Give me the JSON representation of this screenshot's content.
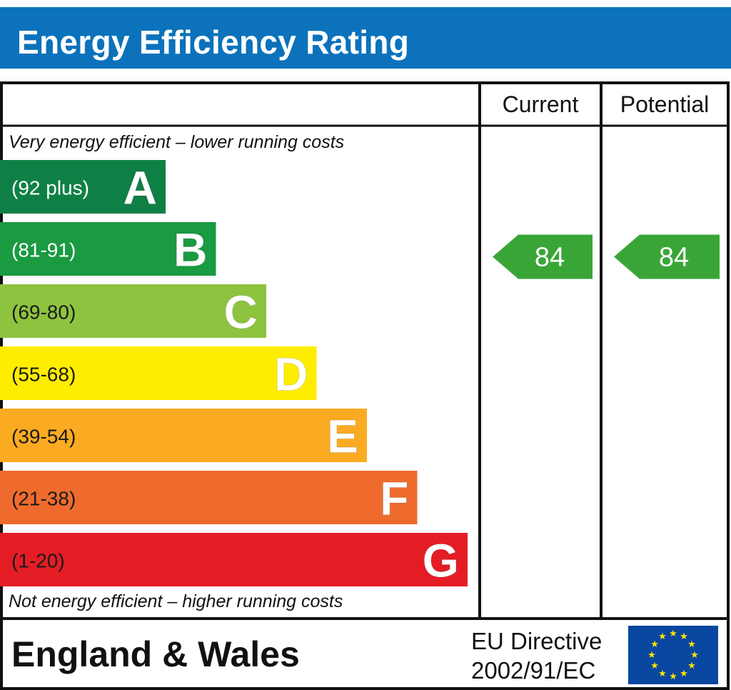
{
  "title": "Energy Efficiency Rating",
  "colors": {
    "header_bg": "#0b72bb",
    "grid": "#111111",
    "indicator": "#3aa537"
  },
  "chart_data": {
    "type": "bar",
    "top_caption": "Very energy efficient – lower running costs",
    "bottom_caption": "Not energy efficient – higher running costs",
    "columns": [
      "Current",
      "Potential"
    ],
    "bands": [
      {
        "letter": "A",
        "range": "(92 plus)",
        "min": 92,
        "max": 100,
        "color": "#0f8045",
        "letter_color": "#ffffff",
        "range_color": "#ffffff"
      },
      {
        "letter": "B",
        "range": "(81-91)",
        "min": 81,
        "max": 91,
        "color": "#1a9a41",
        "letter_color": "#ffffff",
        "range_color": "#ffffff"
      },
      {
        "letter": "C",
        "range": "(69-80)",
        "min": 69,
        "max": 80,
        "color": "#8dc33f",
        "letter_color": "#ffffff",
        "range_color": "#1a1a1a"
      },
      {
        "letter": "D",
        "range": "(55-68)",
        "min": 55,
        "max": 68,
        "color": "#ffed00",
        "letter_color": "#ffffff",
        "range_color": "#1a1a1a"
      },
      {
        "letter": "E",
        "range": "(39-54)",
        "min": 39,
        "max": 54,
        "color": "#fbab21",
        "letter_color": "#ffffff",
        "range_color": "#1a1a1a"
      },
      {
        "letter": "F",
        "range": "(21-38)",
        "min": 21,
        "max": 38,
        "color": "#ef6b2d",
        "letter_color": "#ffffff",
        "range_color": "#1a1a1a"
      },
      {
        "letter": "G",
        "range": "(1-20)",
        "min": 1,
        "max": 20,
        "color": "#e41d25",
        "letter_color": "#ffffff",
        "range_color": "#1a1a1a"
      }
    ],
    "current": {
      "value": 84,
      "band": "B"
    },
    "potential": {
      "value": 84,
      "band": "B"
    }
  },
  "footer": {
    "region": "England & Wales",
    "directive_line1": "EU Directive",
    "directive_line2": "2002/91/EC",
    "flag_icon": "eu-flag-icon",
    "flag_colors": {
      "field": "#0a47a0",
      "stars": "#ffe600"
    }
  }
}
